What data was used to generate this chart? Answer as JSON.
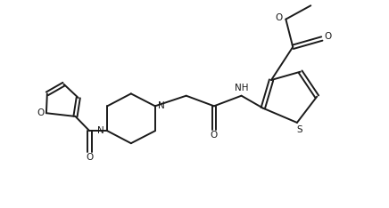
{
  "background": "#ffffff",
  "line_color": "#1a1a1a",
  "line_width": 1.4,
  "fig_width": 4.36,
  "fig_height": 2.34,
  "dpi": 100,
  "xlim": [
    0.0,
    8.5
  ],
  "ylim": [
    0.5,
    5.5
  ]
}
